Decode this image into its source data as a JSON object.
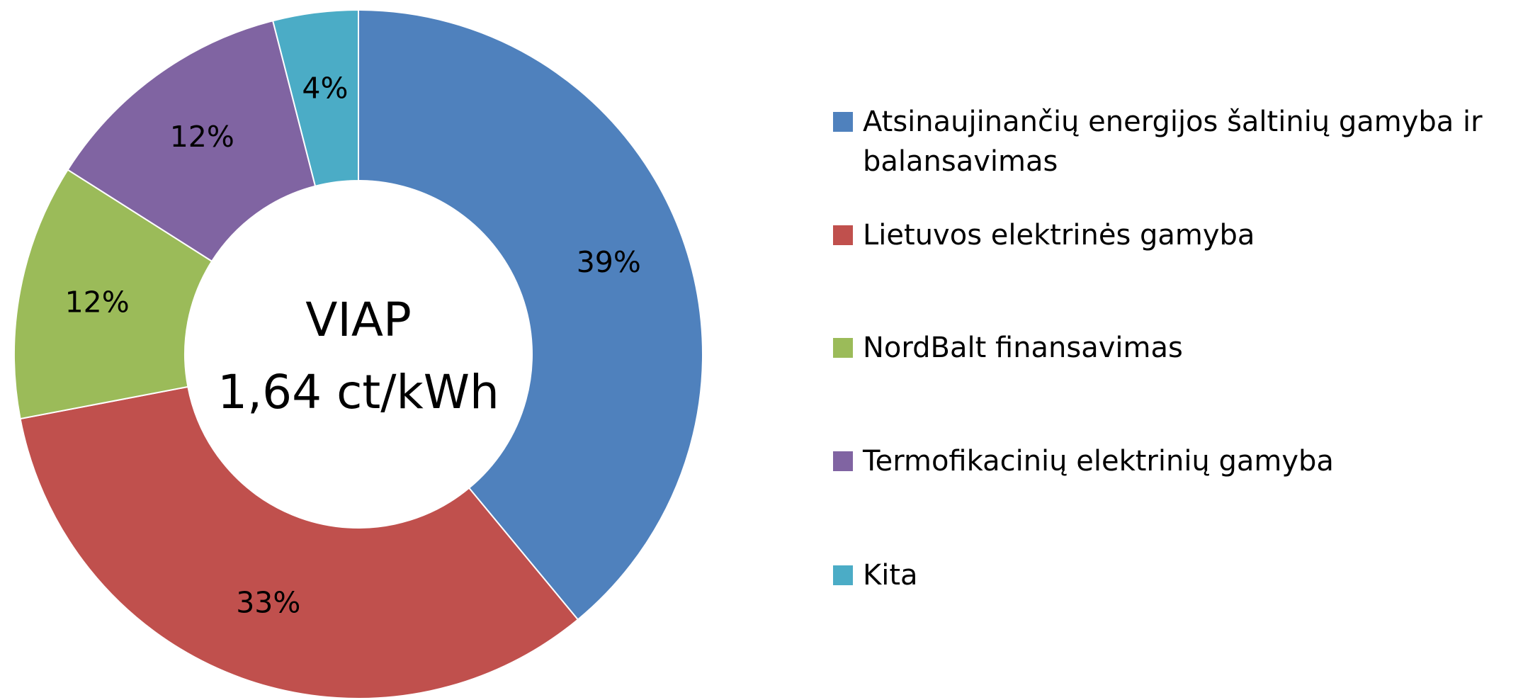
{
  "chart_data": {
    "type": "donut",
    "center_label": [
      "VIAP",
      "1,64 ct/kWh"
    ],
    "categories": [
      "Atsinaujinančių energijos šaltinių gamyba ir balansavimas",
      "Lietuvos elektrinės gamyba",
      "NordBalt finansavimas",
      "Termofikacinių elektrinių gamyba",
      "Kita"
    ],
    "values": [
      39,
      33,
      12,
      12,
      4
    ],
    "value_labels": [
      "39%",
      "33%",
      "12%",
      "12%",
      "4%"
    ],
    "colors": [
      "#4f81bd",
      "#c0504d",
      "#9bbb59",
      "#8064a2",
      "#4bacc6"
    ],
    "legend": "right"
  }
}
